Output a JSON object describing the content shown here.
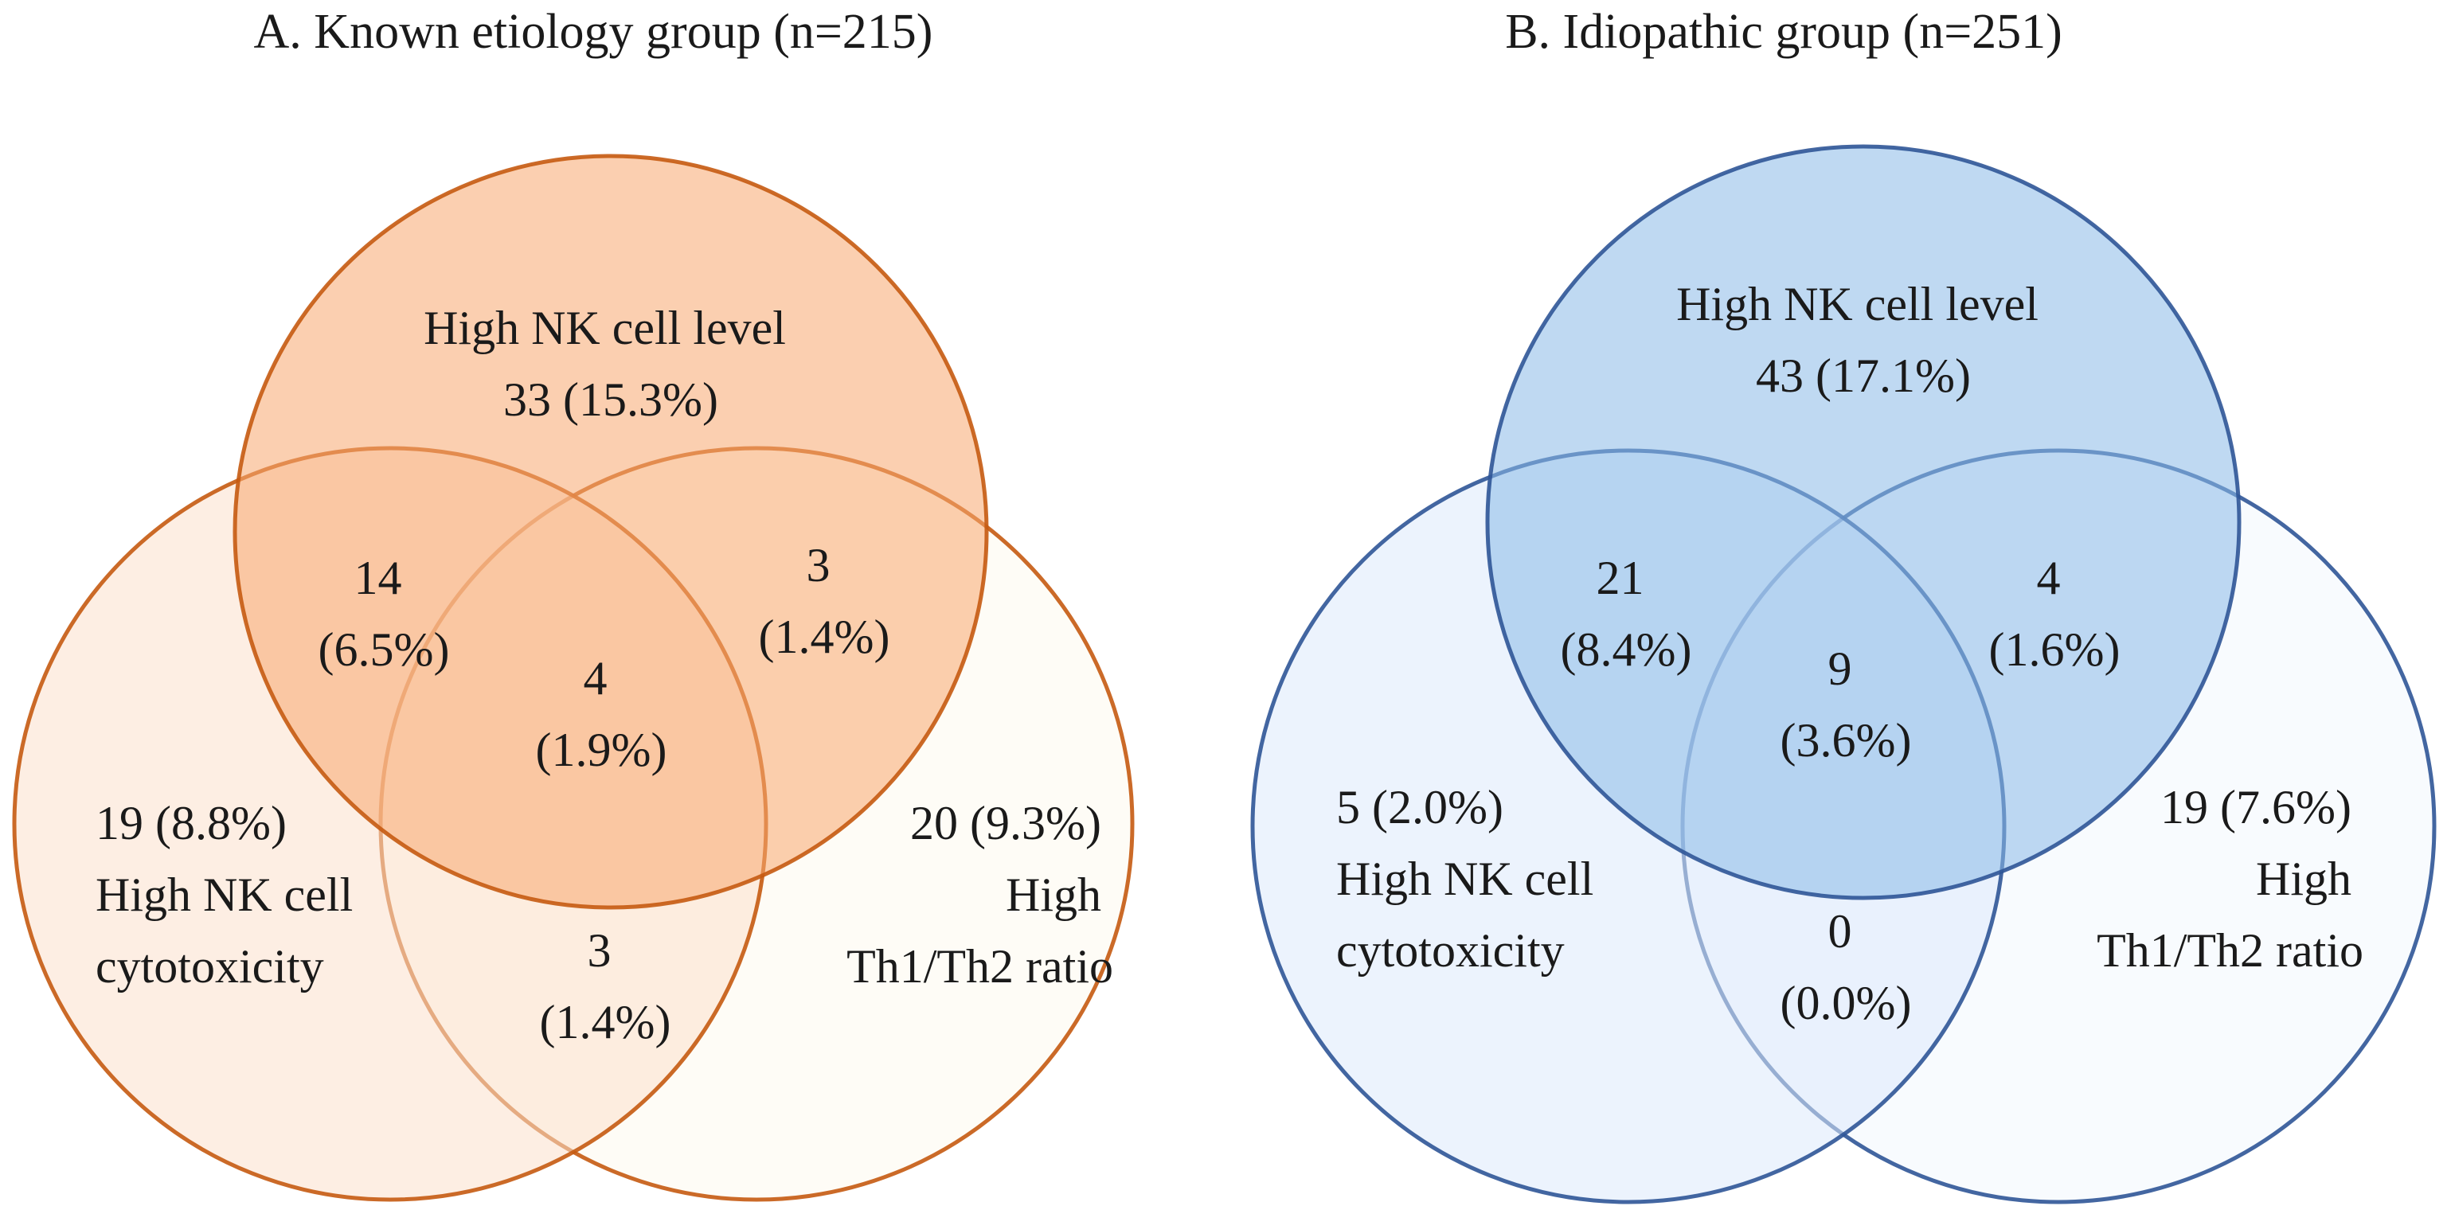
{
  "panels": [
    {
      "title": "A. Known etiology group (n=215)",
      "colors": {
        "stroke": "#C55A11",
        "top": "#F8A86F",
        "left": "#FCE0CC",
        "right": "#FEFAEE",
        "fill_opacity": "0.55"
      },
      "regions": {
        "top": [
          "High NK cell level",
          "33 (15.3%)"
        ],
        "top_left": [
          "14",
          "(6.5%)"
        ],
        "top_right": [
          "3",
          "(1.4%)"
        ],
        "center": [
          "4",
          "(1.9%)"
        ],
        "left": [
          "19 (8.8%)",
          "High NK cell",
          "cytotoxicity"
        ],
        "right": [
          "20 (9.3%)",
          "High",
          "Th1/Th2 ratio"
        ],
        "bottom": [
          "3",
          "(1.4%)"
        ]
      }
    },
    {
      "title": "B. Idiopathic group (n=251)",
      "colors": {
        "stroke": "#2F5597",
        "top": "#8BB9E8",
        "left": "#DCEAFB",
        "right": "#F2F8FE",
        "fill_opacity": "0.55"
      },
      "regions": {
        "top": [
          "High NK cell level",
          "43 (17.1%)"
        ],
        "top_left": [
          "21",
          "(8.4%)"
        ],
        "top_right": [
          "4",
          "(1.6%)"
        ],
        "center": [
          "9",
          "(3.6%)"
        ],
        "left": [
          "5 (2.0%)",
          "High NK cell",
          "cytotoxicity"
        ],
        "right": [
          "19 (7.6%)",
          "High",
          "Th1/Th2 ratio"
        ],
        "bottom": [
          "0",
          "(0.0%)"
        ]
      }
    }
  ]
}
